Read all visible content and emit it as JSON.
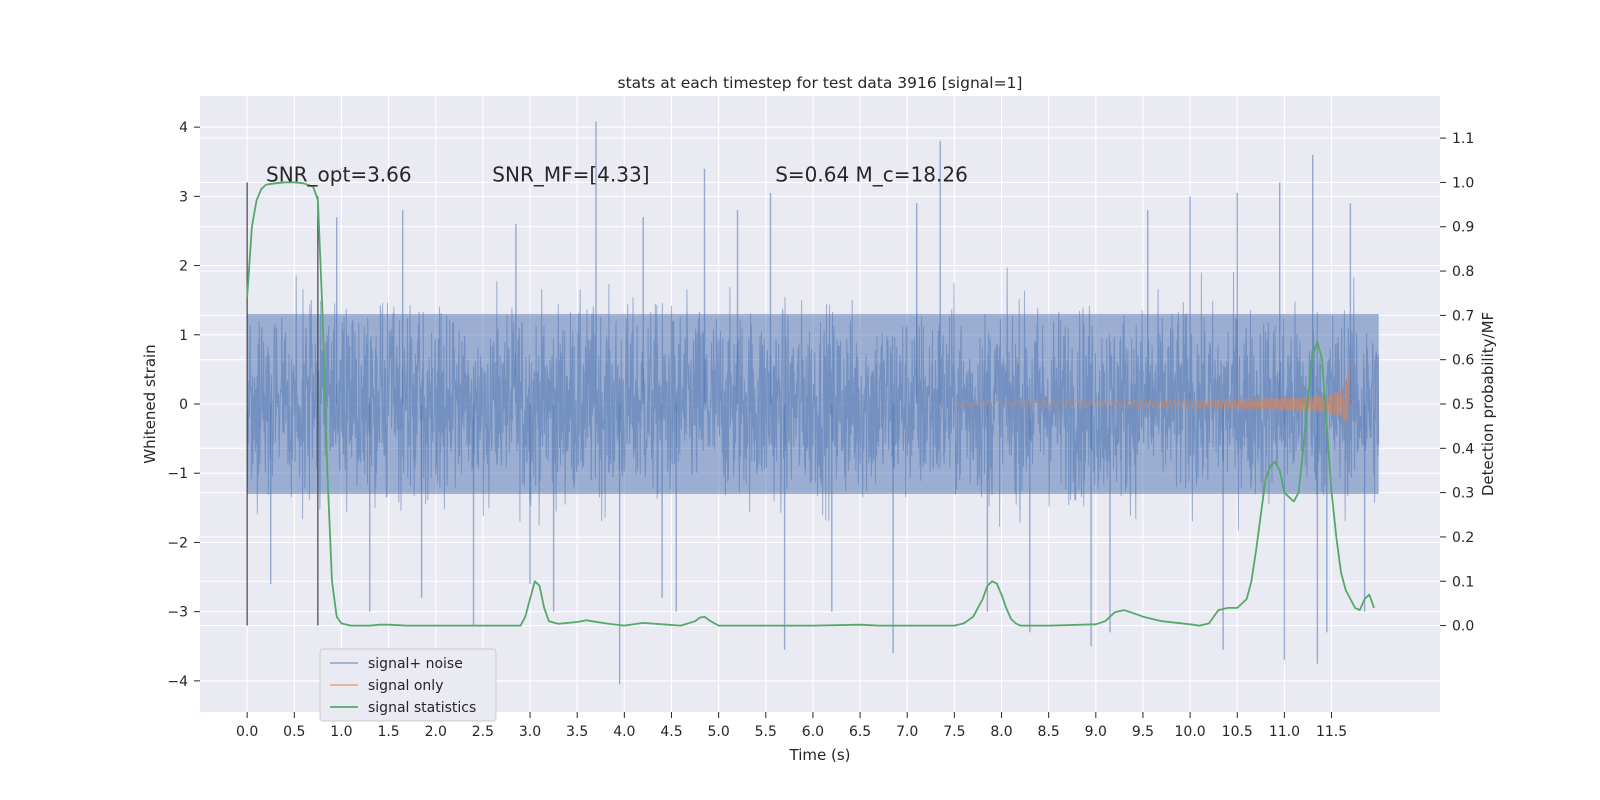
{
  "chart_data": {
    "type": "line",
    "title": "stats at each timestep for test data 3916 [signal=1]",
    "xlabel": "Time (s)",
    "ylabel": "Whitened strain",
    "y2label": "Detection probability/MF",
    "xlim": [
      -0.5,
      12.65
    ],
    "ylim": [
      -4.45,
      4.45
    ],
    "y2lim": [
      -0.195,
      1.195
    ],
    "xticks": [
      0.0,
      0.5,
      1.0,
      1.5,
      2.0,
      2.5,
      3.0,
      3.5,
      4.0,
      4.5,
      5.0,
      5.5,
      6.0,
      6.5,
      7.0,
      7.5,
      8.0,
      8.5,
      9.0,
      9.5,
      10.0,
      10.5,
      11.0,
      11.5
    ],
    "xtick_labels": [
      "0.0",
      "0.5",
      "1.0",
      "1.5",
      "2.0",
      "2.5",
      "3.0",
      "3.5",
      "4.0",
      "4.5",
      "5.0",
      "5.5",
      "6.0",
      "6.5",
      "7.0",
      "7.5",
      "8.0",
      "8.5",
      "9.0",
      "9.5",
      "10.0",
      "10.5",
      "11.0",
      "11.5"
    ],
    "yticks": [
      4,
      3,
      2,
      1,
      0,
      -1,
      -2,
      -3,
      -4
    ],
    "ytick_labels": [
      "4",
      "3",
      "2",
      "1",
      "0",
      "−1",
      "−2",
      "−3",
      "−4"
    ],
    "y2ticks": [
      1.1,
      1.0,
      0.9,
      0.8,
      0.7,
      0.6,
      0.5,
      0.4,
      0.3,
      0.2,
      0.1,
      0.0
    ],
    "y2tick_labels": [
      "1.1",
      "1.0",
      "0.9",
      "0.8",
      "0.7",
      "0.6",
      "0.5",
      "0.4",
      "0.3",
      "0.2",
      "0.1",
      "0.0"
    ],
    "grid": true,
    "legend_position": "lower-left",
    "annotations": [
      {
        "text": "SNR_opt=3.66",
        "x": 0.2,
        "y2": 1.0
      },
      {
        "text": "SNR_MF=[4.33]",
        "x": 2.6,
        "y2": 1.0
      },
      {
        "text": "S=0.64   M_c=18.26",
        "x": 5.6,
        "y2": 1.0
      }
    ],
    "vlines": [
      {
        "x": 0.0,
        "ymin": -3.2,
        "ymax": 3.2
      },
      {
        "x": 0.75,
        "ymin": -3.2,
        "ymax": 3.0
      }
    ],
    "series": [
      {
        "name": "signal+ noise",
        "color": "#4c72b0",
        "axis": "left",
        "x_range": [
          0.0,
          12.0
        ],
        "typical_range": [
          -1.3,
          1.3
        ],
        "peaks": [
          [
            0.25,
            -2.6
          ],
          [
            0.95,
            2.7
          ],
          [
            1.3,
            -3.0
          ],
          [
            1.65,
            2.8
          ],
          [
            1.85,
            -2.8
          ],
          [
            2.4,
            -3.2
          ],
          [
            2.85,
            2.6
          ],
          [
            3.0,
            -2.6
          ],
          [
            3.25,
            -3.0
          ],
          [
            3.7,
            4.08
          ],
          [
            3.95,
            -4.05
          ],
          [
            4.2,
            2.7
          ],
          [
            4.4,
            -2.8
          ],
          [
            4.55,
            -3.0
          ],
          [
            4.85,
            3.4
          ],
          [
            5.2,
            2.8
          ],
          [
            5.55,
            3.05
          ],
          [
            5.7,
            -3.55
          ],
          [
            6.2,
            -3.0
          ],
          [
            6.85,
            -3.6
          ],
          [
            7.1,
            2.9
          ],
          [
            7.35,
            3.8
          ],
          [
            7.85,
            -3.0
          ],
          [
            8.3,
            -3.3
          ],
          [
            8.95,
            -3.5
          ],
          [
            9.15,
            -3.3
          ],
          [
            9.55,
            2.8
          ],
          [
            10.0,
            3.0
          ],
          [
            10.35,
            -3.55
          ],
          [
            10.5,
            3.05
          ],
          [
            10.95,
            3.2
          ],
          [
            11.0,
            -3.7
          ],
          [
            11.3,
            3.6
          ],
          [
            11.35,
            -3.75
          ],
          [
            11.45,
            -3.3
          ],
          [
            11.7,
            2.9
          ],
          [
            11.85,
            -3.0
          ]
        ]
      },
      {
        "name": "signal only",
        "color": "#dd8452",
        "axis": "left",
        "chirp": {
          "t0": 7.5,
          "t_merge": 11.68,
          "t_end": 11.75,
          "peak_amplitude": 0.72
        }
      },
      {
        "name": "signal statistics",
        "color": "#55a868",
        "axis": "right",
        "x": [
          0.0,
          0.05,
          0.1,
          0.15,
          0.2,
          0.3,
          0.4,
          0.5,
          0.6,
          0.7,
          0.75,
          0.8,
          0.85,
          0.9,
          0.95,
          1.0,
          1.1,
          1.2,
          1.3,
          1.4,
          1.5,
          1.7,
          2.0,
          2.5,
          2.9,
          2.95,
          3.0,
          3.05,
          3.1,
          3.15,
          3.2,
          3.3,
          3.5,
          3.6,
          3.8,
          4.0,
          4.2,
          4.4,
          4.6,
          4.75,
          4.8,
          4.85,
          4.9,
          5.0,
          5.2,
          5.5,
          6.0,
          6.5,
          6.7,
          7.0,
          7.5,
          7.6,
          7.7,
          7.8,
          7.85,
          7.9,
          7.95,
          8.0,
          8.05,
          8.1,
          8.15,
          8.2,
          8.3,
          8.5,
          9.0,
          9.1,
          9.2,
          9.3,
          9.4,
          9.5,
          9.7,
          10.0,
          10.1,
          10.2,
          10.3,
          10.4,
          10.5,
          10.6,
          10.65,
          10.7,
          10.75,
          10.8,
          10.85,
          10.9,
          10.95,
          11.0,
          11.05,
          11.1,
          11.15,
          11.2,
          11.25,
          11.3,
          11.35,
          11.4,
          11.45,
          11.5,
          11.55,
          11.6,
          11.65,
          11.7,
          11.75,
          11.8,
          11.85,
          11.9,
          11.95
        ],
        "values": [
          0.74,
          0.9,
          0.96,
          0.985,
          0.995,
          0.998,
          1.0,
          1.0,
          0.998,
          0.99,
          0.96,
          0.7,
          0.35,
          0.1,
          0.02,
          0.005,
          0.0,
          0.0,
          0.0,
          0.002,
          0.002,
          0.0,
          0.0,
          0.0,
          0.0,
          0.02,
          0.06,
          0.1,
          0.09,
          0.04,
          0.01,
          0.004,
          0.008,
          0.012,
          0.005,
          0.0,
          0.006,
          0.003,
          0.0,
          0.01,
          0.018,
          0.02,
          0.012,
          0.0,
          0.0,
          0.0,
          0.0,
          0.002,
          0.0,
          0.0,
          0.0,
          0.005,
          0.02,
          0.06,
          0.09,
          0.1,
          0.095,
          0.07,
          0.04,
          0.015,
          0.005,
          0.0,
          0.0,
          0.0,
          0.003,
          0.01,
          0.03,
          0.035,
          0.028,
          0.02,
          0.01,
          0.003,
          0.0,
          0.005,
          0.035,
          0.04,
          0.04,
          0.06,
          0.1,
          0.17,
          0.25,
          0.33,
          0.36,
          0.37,
          0.35,
          0.3,
          0.29,
          0.28,
          0.3,
          0.4,
          0.52,
          0.61,
          0.64,
          0.6,
          0.45,
          0.3,
          0.2,
          0.12,
          0.08,
          0.06,
          0.04,
          0.035,
          0.06,
          0.07,
          0.04
        ]
      }
    ]
  }
}
